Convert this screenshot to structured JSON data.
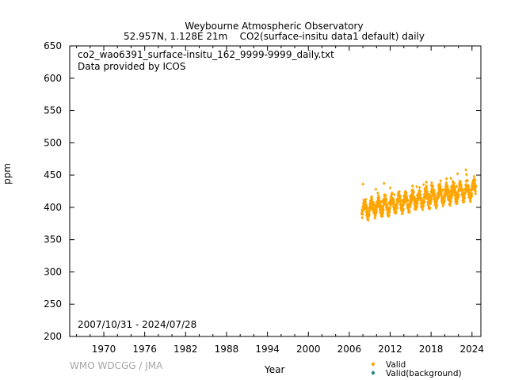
{
  "chart_data": {
    "type": "scatter",
    "title": "Weybourne Atmospheric Observatory",
    "subtitle": "52.957N, 1.128E 21m    CO2(surface-insitu data1 default) daily",
    "xlabel": "Year",
    "ylabel": "ppm",
    "xlim": [
      1965.0,
      2025.3
    ],
    "ylim": [
      200,
      650
    ],
    "x_ticks": [
      "1970",
      "1976",
      "1982",
      "1988",
      "1994",
      "2000",
      "2006",
      "2012",
      "2018",
      "2024"
    ],
    "y_ticks": [
      "200",
      "250",
      "300",
      "350",
      "400",
      "450",
      "500",
      "550",
      "600",
      "650"
    ],
    "annotations": [
      "co2_wao6391_surface-insitu_162_9999-9999_daily.txt",
      "Data provided by ICOS",
      "2007/10/31 - 2024/07/28"
    ],
    "legend_position": "bottom-right",
    "series": [
      {
        "name": "Valid",
        "color": "#ffa500",
        "marker": "diamond",
        "trend": {
          "x": [
            2007.83,
            2024.57
          ],
          "y": [
            396,
            428
          ]
        },
        "seasonal_amplitude": 10,
        "scatter_spread": 8,
        "spikes": [
          {
            "x": 2008.0,
            "y": 436
          },
          {
            "x": 2009.9,
            "y": 428
          },
          {
            "x": 2011.1,
            "y": 437
          },
          {
            "x": 2012.0,
            "y": 430
          },
          {
            "x": 2015.9,
            "y": 432
          },
          {
            "x": 2016.9,
            "y": 435
          },
          {
            "x": 2018.1,
            "y": 438
          },
          {
            "x": 2019.4,
            "y": 441
          },
          {
            "x": 2020.9,
            "y": 445
          },
          {
            "x": 2021.9,
            "y": 452
          },
          {
            "x": 2023.1,
            "y": 458
          },
          {
            "x": 2024.3,
            "y": 448
          }
        ]
      },
      {
        "name": "Valid(background)",
        "color": "#1a8a7a",
        "marker": "diamond",
        "values": []
      }
    ]
  },
  "watermark": "WMO WDCGG / JMA",
  "colors": {
    "axis": "#000000",
    "valid": "#ffa500",
    "background": "#1a8a7a",
    "watermark": "#a6a6a6"
  }
}
